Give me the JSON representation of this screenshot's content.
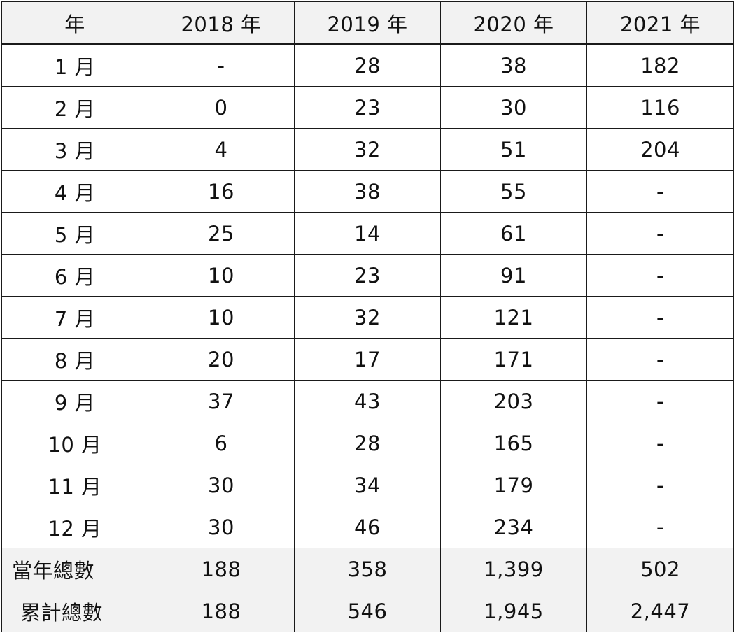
{
  "table": {
    "headers": [
      "年",
      "2018 年",
      "2019 年",
      "2020 年",
      "2021 年"
    ],
    "rows": [
      [
        "1 月",
        "-",
        "28",
        "38",
        "182"
      ],
      [
        "2 月",
        "0",
        "23",
        "30",
        "116"
      ],
      [
        "3 月",
        "4",
        "32",
        "51",
        "204"
      ],
      [
        "4 月",
        "16",
        "38",
        "55",
        "-"
      ],
      [
        "5 月",
        "25",
        "14",
        "61",
        "-"
      ],
      [
        "6 月",
        "10",
        "23",
        "91",
        "-"
      ],
      [
        "7 月",
        "10",
        "32",
        "121",
        "-"
      ],
      [
        "8 月",
        "20",
        "17",
        "171",
        "-"
      ],
      [
        "9 月",
        "37",
        "43",
        "203",
        "-"
      ],
      [
        "10 月",
        "6",
        "28",
        "165",
        "-"
      ],
      [
        "11 月",
        "30",
        "34",
        "179",
        "-"
      ],
      [
        "12 月",
        "30",
        "46",
        "234",
        "-"
      ]
    ],
    "summary_rows": [
      [
        "當年總數",
        "188",
        "358",
        "1,399",
        "502"
      ],
      [
        "累計總數",
        "188",
        "546",
        "1,945",
        "2,447"
      ]
    ]
  },
  "colors": {
    "header_bg": "#f2f2f2",
    "summary_bg": "#f2f2f2",
    "border": "#1a1a1a",
    "text": "#111111"
  }
}
